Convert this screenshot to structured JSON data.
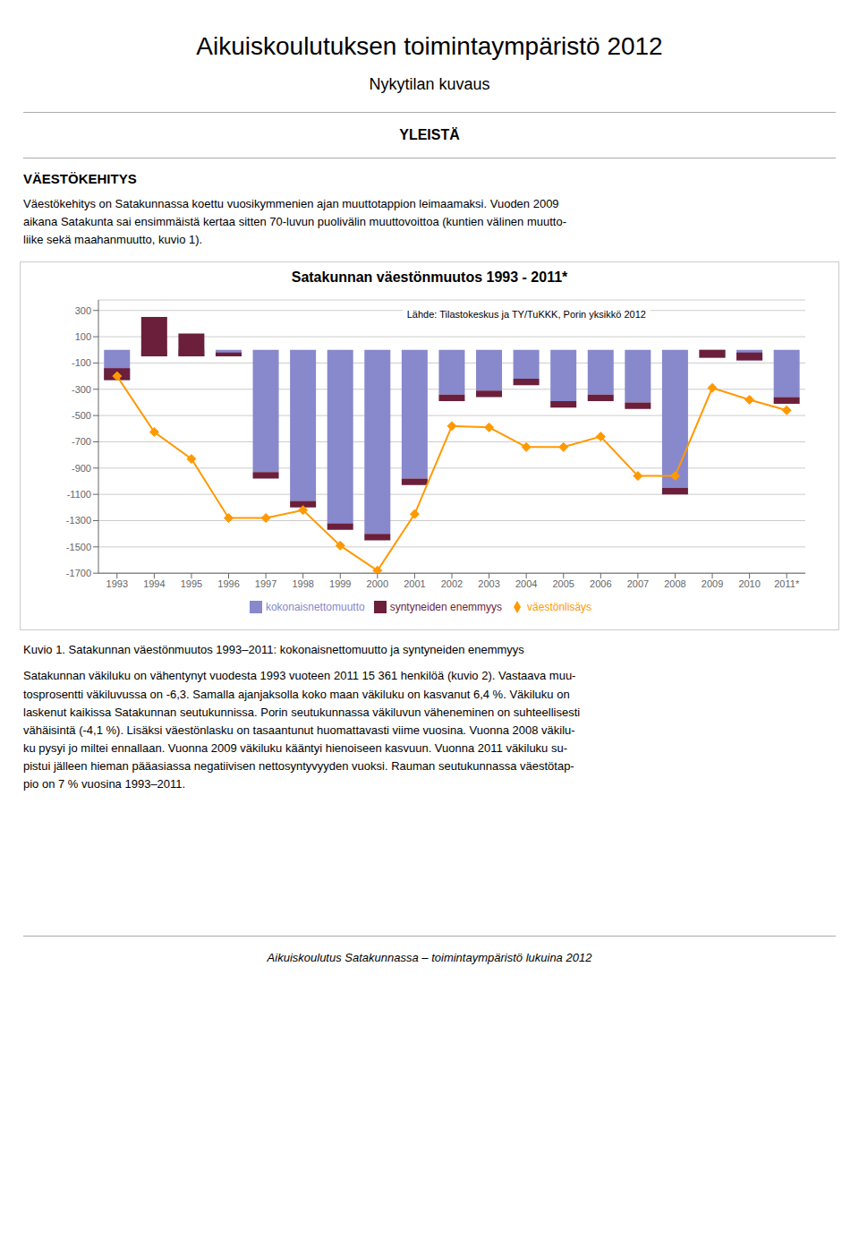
{
  "chart_data": {
    "type": "bar",
    "stacked": true,
    "title": "Satakunnan väestönmuutos 1993 - 2011*",
    "subtitle": "Lähde: Tilastokeskus ja TY/TuKKK, Porin yksikkö 2012",
    "categories": [
      "1993",
      "1994",
      "1995",
      "1996",
      "1997",
      "1998",
      "1999",
      "2000",
      "2001",
      "2002",
      "2003",
      "2004",
      "2005",
      "2006",
      "2007",
      "2008",
      "2009",
      "2010",
      "2011*"
    ],
    "series": [
      {
        "name": "kokonaisnettomuutto",
        "type": "bar",
        "color": "#8888CC",
        "values": [
          -230,
          -50,
          -50,
          -50,
          -930,
          -1150,
          -1320,
          -1400,
          -980,
          -340,
          -310,
          -220,
          -390,
          -340,
          -400,
          -1050,
          -60,
          -80,
          -360
        ]
      },
      {
        "name": "syntyneiden enemmyys",
        "type": "bar",
        "color": "#6B1F3A",
        "values": [
          90,
          300,
          175,
          30,
          -50,
          -50,
          -50,
          -50,
          -50,
          -50,
          -50,
          -50,
          -50,
          -50,
          -50,
          -50,
          60,
          60,
          -50
        ]
      },
      {
        "name": "väestönlisäys",
        "type": "line",
        "color": "#FF9900",
        "marker": "diamond",
        "values": [
          -200,
          -625,
          -830,
          -1280,
          -1280,
          -1220,
          -1490,
          -1680,
          -1250,
          -580,
          -590,
          -740,
          -740,
          -660,
          -960,
          -960,
          -290,
          -380,
          -460
        ]
      }
    ],
    "ylim": [
      -1700,
      380
    ],
    "yticks": [
      300,
      100,
      -100,
      -300,
      -500,
      -700,
      -900,
      -1100,
      -1300,
      -1500,
      -1700
    ],
    "grid": true,
    "legend": "bottom",
    "annotations": [
      "Aikuiskoulutuksen toimintaympäristö 2012",
      "Nykytilan kuvaus",
      "YLEISTÄ",
      "VÄESTÖKEHITYS",
      "Väestökehitys on Satakunnassa koettu vuosikymmenien ajan muuttotappion leimaamaksi. Vuoden 2009\naikana Satakunta sai ensimmäistä kertaa sitten 70-luvun puolivälin muuttovoittoa (kuntien välinen muutto-\nliike sekä maahanmuutto, kuvio 1).",
      "Kuvio 1. Satakunnan väestönmuutos 1993–2011: kokonaisnettomuutto ja syntyneiden enemmyys",
      "Satakunnan väkiluku on vähentynyt vuodesta 1993 vuoteen 2011 15 361 henkilöä (kuvio 2). Vastaava muu-\ntosprosentti väkiluvussa on -6,3. Samalla ajanjaksolla koko maan väkiluku on kasvanut 6,4 %. Väkiluku on\nlaskenut kaikissa Satakunnan seutukunnissa. Porin seutukunnassa väkiluvun väheneminen on suhteellisesti\nvähäisintä (-4,1 %). Lisäksi väestönlasku on tasaantunut huomattavasti viime vuosina. Vuonna 2008 väkilu-\nku pysyi jo miltei ennallaan. Vuonna 2009 väkiluku kääntyi hienoiseen kasvuun. Vuonna 2011 väkiluku su-\npistui jälleen hieman pääasiassa negatiivisen nettosyntyvyyden vuoksi. Rauman seutukunnassa väestötap-\npio on 7 % vuosina 1993–2011.",
      "Aikuiskoulutus Satakunnassa – toimintaympäristö lukuina 2012"
    ]
  }
}
